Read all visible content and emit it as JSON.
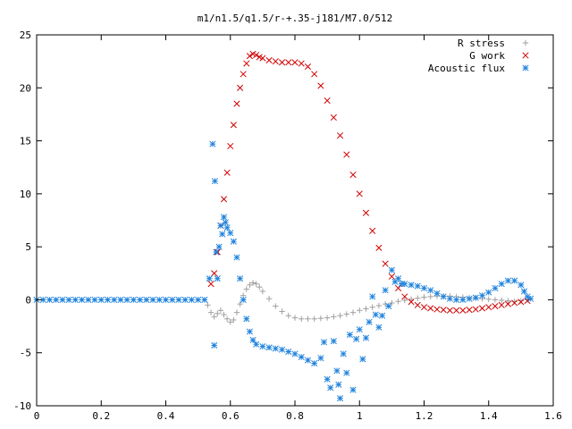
{
  "chart_data": {
    "type": "scatter",
    "title": "m1/n1.5/q1.5/r-+.35-j181/M7.0/512",
    "xlabel": "",
    "ylabel": "",
    "xlim": [
      0,
      1.6
    ],
    "ylim": [
      -10,
      25
    ],
    "x_ticks": [
      "0",
      "0.2",
      "0.4",
      "0.6",
      "0.8",
      "1",
      "1.2",
      "1.4",
      "1.6"
    ],
    "y_ticks": [
      "-10",
      "-5",
      "0",
      "5",
      "10",
      "15",
      "20",
      "25"
    ],
    "grid": false,
    "legend_position": "top-right",
    "series": [
      {
        "name": "R stress",
        "marker": "plus",
        "color": "#a0a0a0",
        "points": [
          [
            0.53,
            -0.5
          ],
          [
            0.54,
            -1.2
          ],
          [
            0.55,
            -1.6
          ],
          [
            0.56,
            -1.3
          ],
          [
            0.57,
            -1.0
          ],
          [
            0.58,
            -1.4
          ],
          [
            0.59,
            -1.8
          ],
          [
            0.6,
            -2.1
          ],
          [
            0.61,
            -1.9
          ],
          [
            0.62,
            -1.2
          ],
          [
            0.63,
            -0.4
          ],
          [
            0.64,
            0.4
          ],
          [
            0.65,
            1.0
          ],
          [
            0.66,
            1.4
          ],
          [
            0.67,
            1.6
          ],
          [
            0.68,
            1.5
          ],
          [
            0.69,
            1.2
          ],
          [
            0.7,
            0.8
          ],
          [
            0.72,
            0.1
          ],
          [
            0.74,
            -0.6
          ],
          [
            0.76,
            -1.1
          ],
          [
            0.78,
            -1.5
          ],
          [
            0.8,
            -1.7
          ],
          [
            0.82,
            -1.8
          ],
          [
            0.84,
            -1.8
          ],
          [
            0.86,
            -1.8
          ],
          [
            0.88,
            -1.75
          ],
          [
            0.9,
            -1.7
          ],
          [
            0.92,
            -1.6
          ],
          [
            0.94,
            -1.5
          ],
          [
            0.96,
            -1.35
          ],
          [
            0.98,
            -1.2
          ],
          [
            1.0,
            -1.0
          ],
          [
            1.02,
            -0.85
          ],
          [
            1.04,
            -0.7
          ],
          [
            1.06,
            -0.55
          ],
          [
            1.08,
            -0.4
          ],
          [
            1.1,
            -0.3
          ],
          [
            1.12,
            -0.15
          ],
          [
            1.14,
            -0.05
          ],
          [
            1.16,
            0.05
          ],
          [
            1.18,
            0.15
          ],
          [
            1.2,
            0.25
          ],
          [
            1.22,
            0.3
          ],
          [
            1.24,
            0.35
          ],
          [
            1.26,
            0.35
          ],
          [
            1.28,
            0.35
          ],
          [
            1.3,
            0.3
          ],
          [
            1.32,
            0.25
          ],
          [
            1.34,
            0.2
          ],
          [
            1.36,
            0.15
          ],
          [
            1.38,
            0.1
          ],
          [
            1.4,
            0.05
          ],
          [
            1.42,
            0.0
          ],
          [
            1.44,
            -0.05
          ],
          [
            1.46,
            -0.1
          ],
          [
            1.48,
            -0.15
          ],
          [
            1.5,
            -0.1
          ],
          [
            1.52,
            0.0
          ]
        ]
      },
      {
        "name": "G work",
        "marker": "cross",
        "color": "#d00000",
        "points": [
          [
            0.54,
            1.5
          ],
          [
            0.55,
            2.5
          ],
          [
            0.56,
            4.5
          ],
          [
            0.57,
            7.0
          ],
          [
            0.58,
            9.5
          ],
          [
            0.59,
            12.0
          ],
          [
            0.6,
            14.5
          ],
          [
            0.61,
            16.5
          ],
          [
            0.62,
            18.5
          ],
          [
            0.63,
            20.0
          ],
          [
            0.64,
            21.3
          ],
          [
            0.65,
            22.3
          ],
          [
            0.66,
            23.0
          ],
          [
            0.67,
            23.2
          ],
          [
            0.68,
            23.1
          ],
          [
            0.69,
            22.9
          ],
          [
            0.7,
            22.8
          ],
          [
            0.72,
            22.6
          ],
          [
            0.74,
            22.5
          ],
          [
            0.76,
            22.4
          ],
          [
            0.78,
            22.4
          ],
          [
            0.8,
            22.4
          ],
          [
            0.82,
            22.3
          ],
          [
            0.84,
            22.0
          ],
          [
            0.86,
            21.3
          ],
          [
            0.88,
            20.2
          ],
          [
            0.9,
            18.8
          ],
          [
            0.92,
            17.2
          ],
          [
            0.94,
            15.5
          ],
          [
            0.96,
            13.7
          ],
          [
            0.98,
            11.8
          ],
          [
            1.0,
            10.0
          ],
          [
            1.02,
            8.2
          ],
          [
            1.04,
            6.5
          ],
          [
            1.06,
            4.9
          ],
          [
            1.08,
            3.4
          ],
          [
            1.1,
            2.2
          ],
          [
            1.12,
            1.1
          ],
          [
            1.14,
            0.3
          ],
          [
            1.16,
            -0.2
          ],
          [
            1.18,
            -0.5
          ],
          [
            1.2,
            -0.7
          ],
          [
            1.22,
            -0.8
          ],
          [
            1.24,
            -0.9
          ],
          [
            1.26,
            -0.95
          ],
          [
            1.28,
            -1.0
          ],
          [
            1.3,
            -1.0
          ],
          [
            1.32,
            -1.0
          ],
          [
            1.34,
            -0.95
          ],
          [
            1.36,
            -0.9
          ],
          [
            1.38,
            -0.8
          ],
          [
            1.4,
            -0.7
          ],
          [
            1.42,
            -0.6
          ],
          [
            1.44,
            -0.5
          ],
          [
            1.46,
            -0.4
          ],
          [
            1.48,
            -0.3
          ],
          [
            1.5,
            -0.2
          ],
          [
            1.52,
            -0.1
          ]
        ]
      },
      {
        "name": "Acoustic flux",
        "marker": "star",
        "color": "#1e82dc",
        "points": [
          [
            0.0,
            0.0
          ],
          [
            0.02,
            0.0
          ],
          [
            0.04,
            0.0
          ],
          [
            0.06,
            0.0
          ],
          [
            0.08,
            0.0
          ],
          [
            0.1,
            0.0
          ],
          [
            0.12,
            0.0
          ],
          [
            0.14,
            0.0
          ],
          [
            0.16,
            0.0
          ],
          [
            0.18,
            0.0
          ],
          [
            0.2,
            0.0
          ],
          [
            0.22,
            0.0
          ],
          [
            0.24,
            0.0
          ],
          [
            0.26,
            0.0
          ],
          [
            0.28,
            0.0
          ],
          [
            0.3,
            0.0
          ],
          [
            0.32,
            0.0
          ],
          [
            0.34,
            0.0
          ],
          [
            0.36,
            0.0
          ],
          [
            0.38,
            0.0
          ],
          [
            0.4,
            0.0
          ],
          [
            0.42,
            0.0
          ],
          [
            0.44,
            0.0
          ],
          [
            0.46,
            0.0
          ],
          [
            0.48,
            0.0
          ],
          [
            0.5,
            0.0
          ],
          [
            0.52,
            0.0
          ],
          [
            0.535,
            2.0
          ],
          [
            0.545,
            14.7
          ],
          [
            0.55,
            -4.3
          ],
          [
            0.552,
            11.2
          ],
          [
            0.556,
            4.5
          ],
          [
            0.56,
            2.0
          ],
          [
            0.565,
            5.0
          ],
          [
            0.57,
            7.0
          ],
          [
            0.575,
            6.2
          ],
          [
            0.58,
            7.8
          ],
          [
            0.585,
            7.3
          ],
          [
            0.59,
            6.8
          ],
          [
            0.6,
            6.3
          ],
          [
            0.61,
            5.5
          ],
          [
            0.62,
            4.0
          ],
          [
            0.63,
            2.0
          ],
          [
            0.64,
            0.0
          ],
          [
            0.65,
            -1.8
          ],
          [
            0.66,
            -3.0
          ],
          [
            0.67,
            -3.8
          ],
          [
            0.68,
            -4.2
          ],
          [
            0.7,
            -4.4
          ],
          [
            0.72,
            -4.5
          ],
          [
            0.74,
            -4.6
          ],
          [
            0.76,
            -4.7
          ],
          [
            0.78,
            -4.9
          ],
          [
            0.8,
            -5.1
          ],
          [
            0.82,
            -5.4
          ],
          [
            0.84,
            -5.7
          ],
          [
            0.86,
            -6.0
          ],
          [
            0.88,
            -5.5
          ],
          [
            0.89,
            -4.0
          ],
          [
            0.9,
            -7.5
          ],
          [
            0.91,
            -8.3
          ],
          [
            0.92,
            -3.9
          ],
          [
            0.93,
            -6.7
          ],
          [
            0.935,
            -8.0
          ],
          [
            0.94,
            -9.3
          ],
          [
            0.95,
            -5.1
          ],
          [
            0.96,
            -6.9
          ],
          [
            0.97,
            -3.3
          ],
          [
            0.98,
            -8.5
          ],
          [
            0.99,
            -3.7
          ],
          [
            1.0,
            -2.8
          ],
          [
            1.01,
            -5.6
          ],
          [
            1.02,
            -3.6
          ],
          [
            1.03,
            -2.1
          ],
          [
            1.04,
            0.3
          ],
          [
            1.05,
            -1.4
          ],
          [
            1.06,
            -2.6
          ],
          [
            1.07,
            -1.5
          ],
          [
            1.08,
            0.9
          ],
          [
            1.09,
            -0.6
          ],
          [
            1.1,
            2.8
          ],
          [
            1.11,
            1.7
          ],
          [
            1.12,
            2.0
          ],
          [
            1.13,
            1.5
          ],
          [
            1.14,
            1.5
          ],
          [
            1.16,
            1.4
          ],
          [
            1.18,
            1.3
          ],
          [
            1.2,
            1.1
          ],
          [
            1.22,
            0.9
          ],
          [
            1.24,
            0.6
          ],
          [
            1.26,
            0.3
          ],
          [
            1.28,
            0.1
          ],
          [
            1.3,
            0.0
          ],
          [
            1.32,
            0.0
          ],
          [
            1.34,
            0.1
          ],
          [
            1.36,
            0.2
          ],
          [
            1.38,
            0.4
          ],
          [
            1.4,
            0.7
          ],
          [
            1.42,
            1.1
          ],
          [
            1.44,
            1.5
          ],
          [
            1.46,
            1.8
          ],
          [
            1.48,
            1.8
          ],
          [
            1.5,
            1.4
          ],
          [
            1.51,
            0.8
          ],
          [
            1.52,
            0.3
          ],
          [
            1.53,
            0.1
          ]
        ]
      }
    ]
  }
}
